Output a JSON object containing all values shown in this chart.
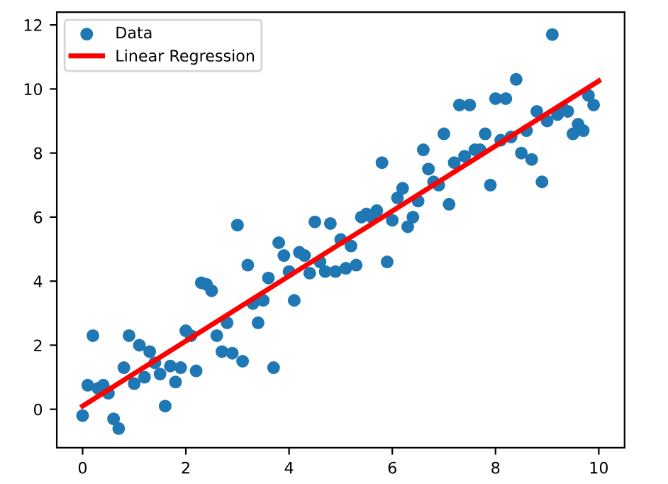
{
  "chart_data": {
    "type": "scatter",
    "xlim": [
      -0.5,
      10.5
    ],
    "ylim": [
      -1.2,
      12.4
    ],
    "xticks": [
      0,
      2,
      4,
      6,
      8,
      10
    ],
    "yticks": [
      0,
      2,
      4,
      6,
      8,
      10,
      12
    ],
    "legend": "top left",
    "grid": false,
    "series": [
      {
        "name": "Data",
        "color": "#1f77b4",
        "marker": "circle",
        "x": [
          0.0,
          0.1,
          0.2,
          0.3,
          0.4,
          0.5,
          0.6,
          0.7,
          0.8,
          0.9,
          1.0,
          1.1,
          1.2,
          1.3,
          1.4,
          1.5,
          1.6,
          1.7,
          1.8,
          1.9,
          2.0,
          2.1,
          2.2,
          2.3,
          2.4,
          2.5,
          2.6,
          2.7,
          2.8,
          2.9,
          3.0,
          3.1,
          3.2,
          3.3,
          3.4,
          3.5,
          3.6,
          3.7,
          3.8,
          3.9,
          4.0,
          4.1,
          4.2,
          4.3,
          4.4,
          4.5,
          4.6,
          4.7,
          4.8,
          4.9,
          5.0,
          5.1,
          5.2,
          5.3,
          5.4,
          5.5,
          5.6,
          5.7,
          5.8,
          5.9,
          6.0,
          6.1,
          6.2,
          6.3,
          6.4,
          6.5,
          6.6,
          6.7,
          6.8,
          6.9,
          7.0,
          7.1,
          7.2,
          7.3,
          7.4,
          7.5,
          7.6,
          7.7,
          7.8,
          7.9,
          8.0,
          8.1,
          8.2,
          8.3,
          8.4,
          8.5,
          8.6,
          8.7,
          8.8,
          8.9,
          9.0,
          9.1,
          9.2,
          9.3,
          9.4,
          9.5,
          9.6,
          9.7,
          9.8,
          9.9
        ],
        "values": [
          -0.2,
          0.75,
          2.3,
          0.65,
          0.75,
          0.5,
          -0.3,
          -0.6,
          1.3,
          2.3,
          0.8,
          2.0,
          1.0,
          1.8,
          1.45,
          1.1,
          0.1,
          1.35,
          0.85,
          1.3,
          2.45,
          2.3,
          1.2,
          3.95,
          3.9,
          3.7,
          2.3,
          1.8,
          2.7,
          1.75,
          5.75,
          1.5,
          4.5,
          3.3,
          2.7,
          3.4,
          4.1,
          1.3,
          5.2,
          4.8,
          4.3,
          3.4,
          4.9,
          4.8,
          4.25,
          5.85,
          4.6,
          4.3,
          5.8,
          4.3,
          5.3,
          4.4,
          5.1,
          4.5,
          6.0,
          6.1,
          6.0,
          6.2,
          7.7,
          4.6,
          5.9,
          6.6,
          6.9,
          5.7,
          6.0,
          6.5,
          8.1,
          7.5,
          7.1,
          7.0,
          8.6,
          6.4,
          7.7,
          9.5,
          7.9,
          9.5,
          8.1,
          8.1,
          8.6,
          7.0,
          9.7,
          8.4,
          9.7,
          8.5,
          10.3,
          8.0,
          8.7,
          7.8,
          9.3,
          7.1,
          9.0,
          11.7,
          9.2,
          9.4,
          9.3,
          8.6,
          8.9,
          8.7,
          9.8,
          9.5
        ]
      },
      {
        "name": "Linear Regression",
        "type": "line",
        "color": "#ff0000",
        "line_style": "solid",
        "marker": "none",
        "x": [
          0,
          10
        ],
        "values": [
          0.1,
          10.25
        ]
      }
    ]
  }
}
